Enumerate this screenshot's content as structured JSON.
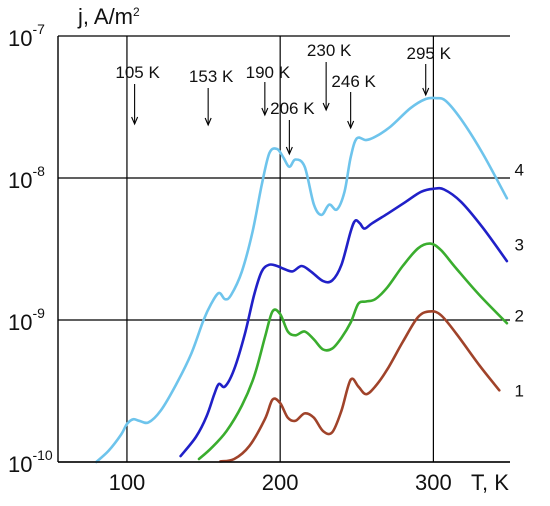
{
  "chart_data": {
    "type": "line",
    "title": "",
    "xlabel": "T, K",
    "ylabel": "j, A/m²",
    "ylabel_base": "j, A/m",
    "ylabel_sup": "2",
    "x_range": [
      55,
      350
    ],
    "y_range": [
      1e-10,
      1e-07
    ],
    "y_scale": "log",
    "grid": true,
    "x_ticks": [
      {
        "value": 100,
        "label": "100"
      },
      {
        "value": 200,
        "label": "200"
      },
      {
        "value": 300,
        "label": "300"
      }
    ],
    "y_ticks": [
      {
        "value": 1e-10,
        "base": "10",
        "exp": "-10"
      },
      {
        "value": 1e-09,
        "base": "10",
        "exp": "-9"
      },
      {
        "value": 1e-08,
        "base": "10",
        "exp": "-8"
      },
      {
        "value": 1e-07,
        "base": "10",
        "exp": "-7"
      }
    ],
    "annotations": [
      {
        "text": "105 K",
        "x": 105
      },
      {
        "text": "153 K",
        "x": 153
      },
      {
        "text": "190 K",
        "x": 190
      },
      {
        "text": "206 K",
        "x": 206
      },
      {
        "text": "230 K",
        "x": 230
      },
      {
        "text": "246 K",
        "x": 246
      },
      {
        "text": "295 K",
        "x": 295
      }
    ],
    "series": [
      {
        "name": "1",
        "color": "#a0432a",
        "points": [
          [
            161,
            1.01e-10
          ],
          [
            170,
            1.05e-10
          ],
          [
            180,
            1.3e-10
          ],
          [
            190,
            2e-10
          ],
          [
            195,
            2.75e-10
          ],
          [
            200,
            2.6e-10
          ],
          [
            205,
            2.05e-10
          ],
          [
            210,
            1.95e-10
          ],
          [
            216,
            2.2e-10
          ],
          [
            222,
            2.05e-10
          ],
          [
            228,
            1.65e-10
          ],
          [
            234,
            1.62e-10
          ],
          [
            240,
            2.3e-10
          ],
          [
            246,
            3.8e-10
          ],
          [
            251,
            3.4e-10
          ],
          [
            256,
            3e-10
          ],
          [
            262,
            3.4e-10
          ],
          [
            270,
            4.5e-10
          ],
          [
            280,
            7e-10
          ],
          [
            290,
            1.05e-09
          ],
          [
            298,
            1.15e-09
          ],
          [
            305,
            1.08e-09
          ],
          [
            315,
            8e-10
          ],
          [
            330,
            4.8e-10
          ],
          [
            343,
            3.2e-10
          ]
        ]
      },
      {
        "name": "2",
        "color": "#3aad2e",
        "points": [
          [
            147,
            1.05e-10
          ],
          [
            155,
            1.25e-10
          ],
          [
            165,
            1.65e-10
          ],
          [
            175,
            2.5e-10
          ],
          [
            183,
            4e-10
          ],
          [
            190,
            7.5e-10
          ],
          [
            195,
            1.15e-09
          ],
          [
            200,
            1.1e-09
          ],
          [
            205,
            8.3e-10
          ],
          [
            210,
            7.8e-10
          ],
          [
            216,
            8.3e-10
          ],
          [
            222,
            7.3e-10
          ],
          [
            228,
            6.2e-10
          ],
          [
            234,
            6.3e-10
          ],
          [
            240,
            7.5e-10
          ],
          [
            246,
            9.6e-10
          ],
          [
            251,
            1.3e-09
          ],
          [
            256,
            1.35e-09
          ],
          [
            262,
            1.4e-09
          ],
          [
            270,
            1.7e-09
          ],
          [
            280,
            2.4e-09
          ],
          [
            290,
            3.2e-09
          ],
          [
            298,
            3.45e-09
          ],
          [
            305,
            3.1e-09
          ],
          [
            315,
            2.3e-09
          ],
          [
            330,
            1.5e-09
          ],
          [
            348,
            9.5e-10
          ]
        ]
      },
      {
        "name": "3",
        "color": "#2020c8",
        "points": [
          [
            135,
            1.1e-10
          ],
          [
            145,
            1.5e-10
          ],
          [
            152,
            2.1e-10
          ],
          [
            157,
            3e-10
          ],
          [
            160,
            3.55e-10
          ],
          [
            164,
            3.4e-10
          ],
          [
            170,
            4.5e-10
          ],
          [
            177,
            8e-10
          ],
          [
            183,
            1.5e-09
          ],
          [
            188,
            2.2e-09
          ],
          [
            193,
            2.45e-09
          ],
          [
            198,
            2.4e-09
          ],
          [
            202,
            2.3e-09
          ],
          [
            208,
            2.2e-09
          ],
          [
            214,
            2.4e-09
          ],
          [
            220,
            2.2e-09
          ],
          [
            228,
            1.88e-09
          ],
          [
            234,
            1.9e-09
          ],
          [
            240,
            2.45e-09
          ],
          [
            246,
            4.2e-09
          ],
          [
            249,
            5e-09
          ],
          [
            252,
            4.8e-09
          ],
          [
            255,
            4.4e-09
          ],
          [
            260,
            4.8e-09
          ],
          [
            270,
            5.6e-09
          ],
          [
            282,
            6.8e-09
          ],
          [
            292,
            8e-09
          ],
          [
            300,
            8.4e-09
          ],
          [
            307,
            8.3e-09
          ],
          [
            318,
            6.8e-09
          ],
          [
            332,
            4.5e-09
          ],
          [
            348,
            2.6e-09
          ]
        ]
      },
      {
        "name": "4",
        "color": "#6ec4ec",
        "points": [
          [
            80,
            1e-10
          ],
          [
            88,
            1.2e-10
          ],
          [
            96,
            1.55e-10
          ],
          [
            100,
            1.85e-10
          ],
          [
            104,
            2e-10
          ],
          [
            108,
            1.95e-10
          ],
          [
            114,
            1.9e-10
          ],
          [
            122,
            2.3e-10
          ],
          [
            132,
            3.5e-10
          ],
          [
            142,
            5.8e-10
          ],
          [
            150,
            1e-09
          ],
          [
            155,
            1.3e-09
          ],
          [
            160,
            1.55e-09
          ],
          [
            164,
            1.4e-09
          ],
          [
            168,
            1.5e-09
          ],
          [
            175,
            2.2e-09
          ],
          [
            182,
            4.2e-09
          ],
          [
            188,
            9e-09
          ],
          [
            193,
            1.5e-08
          ],
          [
            198,
            1.6e-08
          ],
          [
            202,
            1.4e-08
          ],
          [
            206,
            1.2e-08
          ],
          [
            210,
            1.35e-08
          ],
          [
            216,
            1.2e-08
          ],
          [
            222,
            6.5e-09
          ],
          [
            227,
            5.5e-09
          ],
          [
            232,
            6.5e-09
          ],
          [
            237,
            6e-09
          ],
          [
            242,
            8e-09
          ],
          [
            246,
            1.4e-08
          ],
          [
            250,
            1.9e-08
          ],
          [
            256,
            1.85e-08
          ],
          [
            262,
            1.95e-08
          ],
          [
            272,
            2.3e-08
          ],
          [
            285,
            3.1e-08
          ],
          [
            295,
            3.6e-08
          ],
          [
            302,
            3.65e-08
          ],
          [
            308,
            3.5e-08
          ],
          [
            318,
            2.6e-08
          ],
          [
            332,
            1.5e-08
          ],
          [
            348,
            7.2e-09
          ]
        ]
      }
    ],
    "series_labels": [
      {
        "text": "4",
        "x": 356,
        "y": 1.15e-08
      },
      {
        "text": "3",
        "x": 356,
        "y": 3.4e-09
      },
      {
        "text": "2",
        "x": 356,
        "y": 1.08e-09
      },
      {
        "text": "1",
        "x": 356,
        "y": 3.2e-10
      }
    ]
  }
}
